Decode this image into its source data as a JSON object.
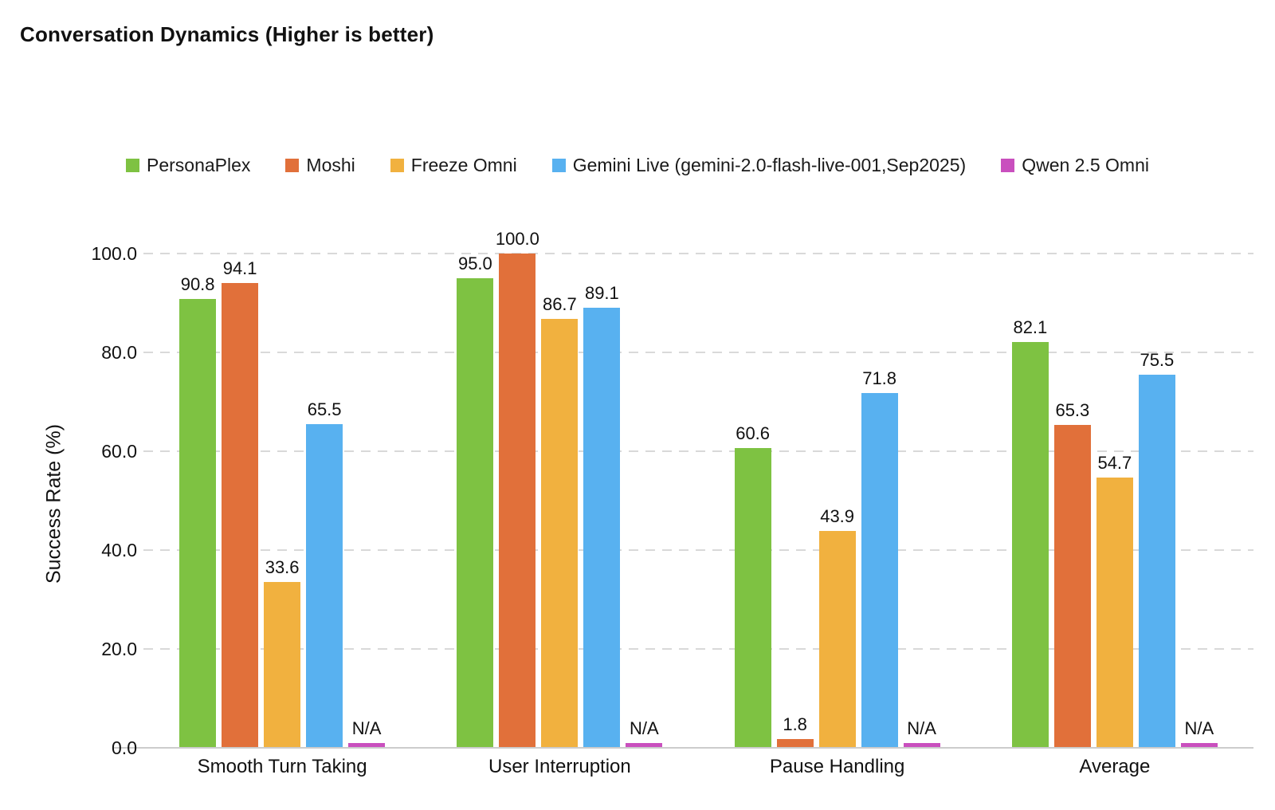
{
  "chart_data": {
    "type": "bar",
    "title": "Conversation Dynamics (Higher is better)",
    "ylabel": "Success Rate (%)",
    "xlabel": "",
    "ylim": [
      0,
      100
    ],
    "yticks": [
      0,
      20,
      40,
      60,
      80,
      100
    ],
    "ytick_labels": [
      "0.0",
      "20.0",
      "40.0",
      "60.0",
      "80.0",
      "100.0"
    ],
    "grid": "horizontal-dashed",
    "legend_position": "top",
    "categories": [
      "Smooth Turn Taking",
      "User Interruption",
      "Pause Handling",
      "Average"
    ],
    "series": [
      {
        "name": "PersonaPlex",
        "color": "#7ec242",
        "values": [
          90.8,
          95.0,
          60.6,
          82.1
        ],
        "labels": [
          "90.8",
          "95.0",
          "60.6",
          "82.1"
        ]
      },
      {
        "name": "Moshi",
        "color": "#e1703a",
        "values": [
          94.1,
          100.0,
          1.8,
          65.3
        ],
        "labels": [
          "94.1",
          "100.0",
          "1.8",
          "65.3"
        ]
      },
      {
        "name": "Freeze Omni",
        "color": "#f1b13f",
        "values": [
          33.6,
          86.7,
          43.9,
          54.7
        ],
        "labels": [
          "33.6",
          "86.7",
          "43.9",
          "54.7"
        ]
      },
      {
        "name": "Gemini Live (gemini-2.0-flash-live-001,Sep2025)",
        "color": "#58b1f0",
        "values": [
          65.5,
          89.1,
          71.8,
          75.5
        ],
        "labels": [
          "65.5",
          "89.1",
          "71.8",
          "75.5"
        ]
      },
      {
        "name": "Qwen 2.5 Omni",
        "color": "#c94fbe",
        "values": [
          null,
          null,
          null,
          null
        ],
        "labels": [
          "N/A",
          "N/A",
          "N/A",
          "N/A"
        ],
        "na_stub_value": 1.0
      }
    ],
    "colors": {
      "grid": "#d9d9d9",
      "axis_line": "#cccccc",
      "text": "#111111",
      "background": "#ffffff"
    }
  }
}
